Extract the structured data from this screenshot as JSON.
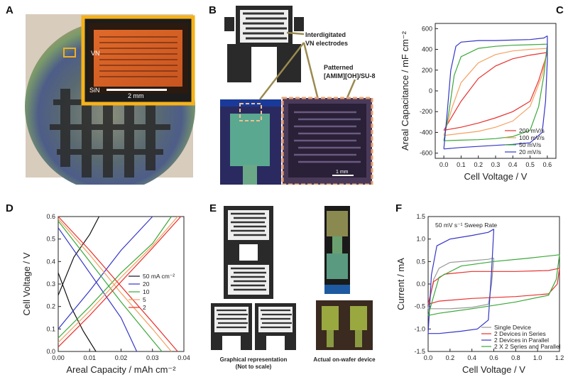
{
  "panels": {
    "a": {
      "label": "A",
      "vn": "VN",
      "sin": "SiN",
      "scale": "2 mm"
    },
    "b": {
      "label": "B",
      "callout_electrodes": "Interdigitated VN electrodes",
      "callout_electrodes_l1": "Interdigitated",
      "callout_electrodes_l2": "VN electrodes",
      "callout_pattern_l1": "Patterned",
      "callout_pattern_l2": "[AMIM][OH]/SU-8",
      "scale": "1 mm"
    },
    "c": {
      "label": "C"
    },
    "d": {
      "label": "D"
    },
    "e": {
      "label": "E",
      "caption_left_l1": "Graphical representation",
      "caption_left_l2": "(Not to scale)",
      "caption_right": "Actual on-wafer device"
    },
    "f": {
      "label": "F"
    }
  },
  "colors": {
    "red": "#e8312d",
    "orange": "#f5a060",
    "green": "#3aa838",
    "blue": "#3535c8",
    "black": "#111111",
    "gray": "#9a9a9a"
  },
  "chart_data": [
    {
      "id": "C",
      "type": "line",
      "xlabel": "Cell Voltage / V",
      "ylabel": "Areal Capacitance / mF cm⁻²",
      "xlim": [
        -0.05,
        0.65
      ],
      "ylim": [
        -650,
        650
      ],
      "xticks": [
        0.0,
        0.1,
        0.2,
        0.3,
        0.4,
        0.5,
        0.6
      ],
      "yticks": [
        -600,
        -400,
        -200,
        0,
        200,
        400,
        600
      ],
      "legend_position": "bottom-right",
      "series": [
        {
          "name": "200 mV/s",
          "color": "#e8312d",
          "upper": [
            [
              0,
              -380
            ],
            [
              0.1,
              -100
            ],
            [
              0.2,
              120
            ],
            [
              0.3,
              240
            ],
            [
              0.4,
              310
            ],
            [
              0.5,
              345
            ],
            [
              0.6,
              370
            ]
          ],
          "lower": [
            [
              0.6,
              370
            ],
            [
              0.55,
              100
            ],
            [
              0.5,
              -100
            ],
            [
              0.4,
              -200
            ],
            [
              0.3,
              -260
            ],
            [
              0.2,
              -310
            ],
            [
              0.1,
              -350
            ],
            [
              0,
              -380
            ]
          ]
        },
        {
          "name": "100 mV/s",
          "color": "#f5a060",
          "upper": [
            [
              0,
              -430
            ],
            [
              0.05,
              -150
            ],
            [
              0.1,
              80
            ],
            [
              0.2,
              270
            ],
            [
              0.3,
              350
            ],
            [
              0.4,
              385
            ],
            [
              0.5,
              400
            ],
            [
              0.6,
              410
            ]
          ],
          "lower": [
            [
              0.6,
              410
            ],
            [
              0.57,
              150
            ],
            [
              0.5,
              -150
            ],
            [
              0.4,
              -290
            ],
            [
              0.3,
              -350
            ],
            [
              0.2,
              -390
            ],
            [
              0.1,
              -410
            ],
            [
              0,
              -430
            ]
          ]
        },
        {
          "name": "50 mV/s",
          "color": "#3aa838",
          "upper": [
            [
              0,
              -480
            ],
            [
              0.03,
              -200
            ],
            [
              0.06,
              150
            ],
            [
              0.1,
              330
            ],
            [
              0.2,
              410
            ],
            [
              0.3,
              430
            ],
            [
              0.4,
              440
            ],
            [
              0.5,
              445
            ],
            [
              0.6,
              450
            ]
          ],
          "lower": [
            [
              0.6,
              450
            ],
            [
              0.58,
              150
            ],
            [
              0.55,
              -150
            ],
            [
              0.5,
              -380
            ],
            [
              0.4,
              -440
            ],
            [
              0.3,
              -460
            ],
            [
              0.2,
              -470
            ],
            [
              0.1,
              -475
            ],
            [
              0,
              -480
            ]
          ]
        },
        {
          "name": "20 mV/s",
          "color": "#3535c8",
          "upper": [
            [
              0,
              -560
            ],
            [
              0.02,
              -200
            ],
            [
              0.04,
              200
            ],
            [
              0.07,
              430
            ],
            [
              0.1,
              470
            ],
            [
              0.2,
              485
            ],
            [
              0.3,
              485
            ],
            [
              0.4,
              490
            ],
            [
              0.5,
              495
            ],
            [
              0.58,
              510
            ],
            [
              0.6,
              530
            ]
          ],
          "lower": [
            [
              0.6,
              530
            ],
            [
              0.6,
              300
            ],
            [
              0.59,
              -100
            ],
            [
              0.57,
              -400
            ],
            [
              0.5,
              -500
            ],
            [
              0.4,
              -515
            ],
            [
              0.3,
              -525
            ],
            [
              0.2,
              -535
            ],
            [
              0.1,
              -545
            ],
            [
              0,
              -560
            ]
          ]
        }
      ]
    },
    {
      "id": "D",
      "type": "line",
      "xlabel": "Areal Capacity / mAh cm⁻²",
      "ylabel": "Cell Voltage / V",
      "xlim": [
        0,
        0.04
      ],
      "ylim": [
        0,
        0.6
      ],
      "xticks": [
        0.0,
        0.01,
        0.02,
        0.03,
        0.04
      ],
      "yticks": [
        0.0,
        0.1,
        0.2,
        0.3,
        0.4,
        0.5,
        0.6
      ],
      "legend_title_unit": "mA cm⁻²",
      "legend_position": "right",
      "series": [
        {
          "name": "50",
          "legend": "50 mA cm⁻²",
          "color": "#111111",
          "charge": [
            [
              0,
              0.25
            ],
            [
              0.005,
              0.42
            ],
            [
              0.01,
              0.52
            ],
            [
              0.013,
              0.6
            ]
          ],
          "discharge": [
            [
              0,
              0.35
            ],
            [
              0.004,
              0.2
            ],
            [
              0.008,
              0.09
            ],
            [
              0.012,
              0.0
            ]
          ]
        },
        {
          "name": "20",
          "legend": "20",
          "color": "#3535c8",
          "charge": [
            [
              0,
              0.1
            ],
            [
              0.01,
              0.27
            ],
            [
              0.02,
              0.45
            ],
            [
              0.03,
              0.6
            ]
          ],
          "discharge": [
            [
              0,
              0.55
            ],
            [
              0.01,
              0.35
            ],
            [
              0.02,
              0.15
            ],
            [
              0.025,
              0.0
            ]
          ]
        },
        {
          "name": "10",
          "legend": "10",
          "color": "#3aa838",
          "charge": [
            [
              0,
              0.06
            ],
            [
              0.01,
              0.2
            ],
            [
              0.02,
              0.35
            ],
            [
              0.03,
              0.48
            ],
            [
              0.036,
              0.6
            ]
          ],
          "discharge": [
            [
              0,
              0.58
            ],
            [
              0.01,
              0.4
            ],
            [
              0.02,
              0.22
            ],
            [
              0.03,
              0.05
            ],
            [
              0.033,
              0.0
            ]
          ]
        },
        {
          "name": "5",
          "legend": "5",
          "color": "#f5a060",
          "charge": [
            [
              0,
              0.04
            ],
            [
              0.01,
              0.18
            ],
            [
              0.02,
              0.33
            ],
            [
              0.03,
              0.47
            ],
            [
              0.038,
              0.6
            ]
          ],
          "discharge": [
            [
              0,
              0.59
            ],
            [
              0.01,
              0.43
            ],
            [
              0.02,
              0.26
            ],
            [
              0.03,
              0.1
            ],
            [
              0.036,
              0.0
            ]
          ]
        },
        {
          "name": "2",
          "legend": "2",
          "color": "#e8312d",
          "charge": [
            [
              0,
              0.02
            ],
            [
              0.01,
              0.16
            ],
            [
              0.02,
              0.31
            ],
            [
              0.03,
              0.46
            ],
            [
              0.039,
              0.6
            ]
          ],
          "discharge": [
            [
              0,
              0.6
            ],
            [
              0.01,
              0.45
            ],
            [
              0.02,
              0.29
            ],
            [
              0.03,
              0.13
            ],
            [
              0.038,
              0.0
            ]
          ]
        }
      ]
    },
    {
      "id": "F",
      "type": "line",
      "title": "50 mV s⁻¹ Sweep Rate",
      "xlabel": "Cell Voltage / V",
      "ylabel": "Current / mA",
      "xlim": [
        0,
        1.2
      ],
      "ylim": [
        -1.5,
        1.5
      ],
      "xticks": [
        0.0,
        0.2,
        0.4,
        0.6,
        0.8,
        1.0,
        1.2
      ],
      "yticks": [
        -1.5,
        -1.0,
        -0.5,
        0.0,
        0.5,
        1.0,
        1.5
      ],
      "legend_position": "bottom-right",
      "series": [
        {
          "name": "Single Device",
          "color": "#9a9a9a",
          "upper": [
            [
              0,
              -0.55
            ],
            [
              0.05,
              0.1
            ],
            [
              0.1,
              0.35
            ],
            [
              0.2,
              0.48
            ],
            [
              0.4,
              0.52
            ],
            [
              0.55,
              0.55
            ],
            [
              0.6,
              0.58
            ]
          ],
          "lower": [
            [
              0.6,
              0.58
            ],
            [
              0.58,
              0.0
            ],
            [
              0.55,
              -0.45
            ],
            [
              0.4,
              -0.52
            ],
            [
              0.2,
              -0.55
            ],
            [
              0,
              -0.55
            ]
          ]
        },
        {
          "name": "2 Devices in Series",
          "color": "#e8312d",
          "upper": [
            [
              0,
              -0.45
            ],
            [
              0.05,
              0.05
            ],
            [
              0.15,
              0.22
            ],
            [
              0.4,
              0.28
            ],
            [
              0.8,
              0.28
            ],
            [
              1.1,
              0.3
            ],
            [
              1.2,
              0.35
            ]
          ],
          "lower": [
            [
              1.2,
              0.35
            ],
            [
              1.18,
              0.0
            ],
            [
              1.1,
              -0.22
            ],
            [
              0.8,
              -0.28
            ],
            [
              0.4,
              -0.32
            ],
            [
              0.1,
              -0.38
            ],
            [
              0,
              -0.45
            ]
          ]
        },
        {
          "name": "2 Devices in Parallel",
          "color": "#3535c8",
          "upper": [
            [
              0,
              -1.1
            ],
            [
              0.03,
              0.2
            ],
            [
              0.08,
              0.85
            ],
            [
              0.2,
              1.0
            ],
            [
              0.4,
              1.08
            ],
            [
              0.55,
              1.15
            ],
            [
              0.6,
              1.22
            ]
          ],
          "lower": [
            [
              0.6,
              1.22
            ],
            [
              0.58,
              0.3
            ],
            [
              0.55,
              -0.8
            ],
            [
              0.45,
              -1.0
            ],
            [
              0.3,
              -1.05
            ],
            [
              0.1,
              -1.1
            ],
            [
              0,
              -1.1
            ]
          ]
        },
        {
          "name": "2 X 2 Series and Parallel",
          "color": "#3aa838",
          "upper": [
            [
              0,
              -0.7
            ],
            [
              0.1,
              0.15
            ],
            [
              0.3,
              0.4
            ],
            [
              0.6,
              0.5
            ],
            [
              0.9,
              0.57
            ],
            [
              1.2,
              0.65
            ]
          ],
          "lower": [
            [
              1.2,
              0.65
            ],
            [
              1.17,
              0.1
            ],
            [
              1.1,
              -0.25
            ],
            [
              0.8,
              -0.4
            ],
            [
              0.4,
              -0.55
            ],
            [
              0.1,
              -0.65
            ],
            [
              0,
              -0.7
            ]
          ]
        }
      ]
    }
  ]
}
